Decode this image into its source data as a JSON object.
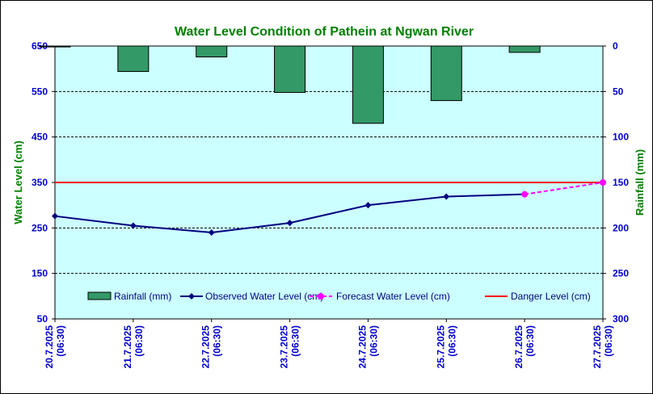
{
  "chart_data": {
    "type": "bar+line",
    "title": "Water Level Condition of Pathein  at Ngwan River",
    "ylabel_left": "Water Level (cm)",
    "ylabel_right": "Rainfall (mm)",
    "ylim_left": [
      50,
      650
    ],
    "yticks_left": [
      "650",
      "550",
      "450",
      "350",
      "250",
      "150",
      "50"
    ],
    "ylim_right": [
      0,
      300
    ],
    "yticks_right": [
      "0",
      "50",
      "100",
      "150",
      "200",
      "250",
      "300"
    ],
    "right_axis_inverted": true,
    "categories": [
      {
        "date": "20.7.2025",
        "time": "(06:30)"
      },
      {
        "date": "21.7.2025",
        "time": "(06:30)"
      },
      {
        "date": "22.7.2025",
        "time": "(06:30)"
      },
      {
        "date": "23.7.2025",
        "time": "(06:30)"
      },
      {
        "date": "24.7.2025",
        "time": "(06:30)"
      },
      {
        "date": "25.7.2025",
        "time": "(06:30)"
      },
      {
        "date": "26.7.2025",
        "time": "(06:30)"
      },
      {
        "date": "27.7.2025",
        "time": "(06:30)"
      }
    ],
    "series": [
      {
        "name": "Rainfall (mm)",
        "kind": "bar",
        "axis": "right",
        "color": "#339966",
        "values": [
          1,
          28,
          12,
          51,
          85,
          60,
          7,
          null
        ]
      },
      {
        "name": "Observed Water Level (cm)",
        "kind": "line",
        "axis": "left",
        "color": "#000080",
        "values": [
          276,
          255,
          240,
          261,
          300,
          319,
          324,
          null
        ]
      },
      {
        "name": "Forecast Water Level (cm)",
        "kind": "dashed-line",
        "axis": "left",
        "color": "#ff00ff",
        "values": [
          null,
          null,
          null,
          null,
          null,
          null,
          324,
          350
        ]
      },
      {
        "name": "Danger Level (cm)",
        "kind": "hline",
        "axis": "left",
        "color": "#ff0000",
        "value": 350
      }
    ],
    "plot_background": "#ccffff",
    "gridlines": true,
    "legend_position": "bottom-inside"
  }
}
